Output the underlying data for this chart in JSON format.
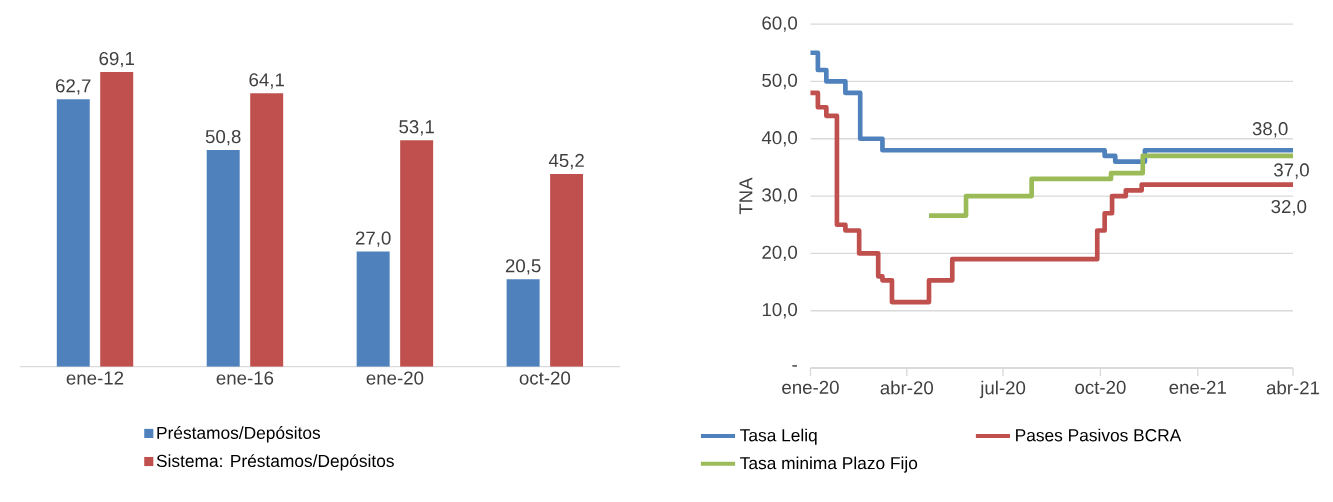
{
  "chart_data": [
    {
      "type": "bar",
      "categories": [
        "ene-12",
        "ene-16",
        "ene-20",
        "oct-20"
      ],
      "series": [
        {
          "name": "Préstamos/Depósitos",
          "color": "#4f81bd",
          "values": [
            62.7,
            50.8,
            27.0,
            20.5
          ],
          "value_labels": [
            "62,7",
            "50,8",
            "27,0",
            "20,5"
          ]
        },
        {
          "name": "Sistema: Préstamos/Depósitos",
          "color": "#c0504d",
          "values": [
            69.1,
            64.1,
            53.1,
            45.2
          ],
          "value_labels": [
            "69,1",
            "64,1",
            "53,1",
            "45,2"
          ]
        }
      ],
      "legend": "bottom",
      "grid": false
    },
    {
      "type": "step",
      "ylabel": "TNA",
      "xlim": [
        "2020-01-01",
        "2021-04-01"
      ],
      "xticks": [
        {
          "value": "2020-01-01",
          "label": "ene-20"
        },
        {
          "value": "2020-04-01",
          "label": "abr-20"
        },
        {
          "value": "2020-07-01",
          "label": "jul-20"
        },
        {
          "value": "2020-10-01",
          "label": "oct-20"
        },
        {
          "value": "2021-01-01",
          "label": "ene-21"
        },
        {
          "value": "2021-04-01",
          "label": "abr-21"
        }
      ],
      "ylim": [
        0,
        60
      ],
      "yticks": [
        {
          "value": 0,
          "label": "-"
        },
        {
          "value": 10,
          "label": "10,0"
        },
        {
          "value": 20,
          "label": "20,0"
        },
        {
          "value": 30,
          "label": "30,0"
        },
        {
          "value": 40,
          "label": "40,0"
        },
        {
          "value": 50,
          "label": "50,0"
        },
        {
          "value": 60,
          "label": "60,0"
        }
      ],
      "series": [
        {
          "name": "Tasa Leliq",
          "color": "#4f81bd",
          "x": [
            "2020-01-01",
            "2020-01-08",
            "2020-01-16",
            "2020-02-03",
            "2020-02-17",
            "2020-03-09",
            "2020-10-05",
            "2020-10-15",
            "2020-11-12",
            "2021-04-01"
          ],
          "values": [
            55,
            52,
            50,
            48,
            40,
            38,
            37,
            36,
            38,
            38
          ],
          "value_labels": [
            null,
            null,
            null,
            null,
            null,
            null,
            null,
            null,
            null,
            "38,0"
          ]
        },
        {
          "name": "Pases Pasivos BCRA",
          "color": "#c0504d",
          "x": [
            "2020-01-01",
            "2020-01-08",
            "2020-01-16",
            "2020-01-26",
            "2020-02-03",
            "2020-02-16",
            "2020-03-05",
            "2020-03-09",
            "2020-03-18",
            "2020-04-22",
            "2020-05-14",
            "2020-09-28",
            "2020-10-05",
            "2020-10-12",
            "2020-10-25",
            "2020-11-09",
            "2021-04-01"
          ],
          "values": [
            48,
            45.5,
            44,
            25,
            24,
            20,
            16,
            15.3,
            11.5,
            15.3,
            19,
            24,
            27,
            30,
            31,
            32,
            32
          ],
          "value_labels": [
            null,
            null,
            null,
            null,
            null,
            null,
            null,
            null,
            null,
            null,
            null,
            null,
            null,
            null,
            null,
            null,
            "32,0"
          ]
        },
        {
          "name": "Tasa minima Plazo Fijo",
          "color": "#9bbb59",
          "x": [
            "2020-04-22",
            "2020-05-27",
            "2020-07-28",
            "2020-10-11",
            "2020-11-10",
            "2021-04-01"
          ],
          "values": [
            26.6,
            30,
            33,
            34,
            37,
            37
          ],
          "value_labels": [
            null,
            null,
            null,
            null,
            null,
            "37,0"
          ]
        }
      ],
      "grid": "y",
      "legend": "bottom"
    }
  ]
}
